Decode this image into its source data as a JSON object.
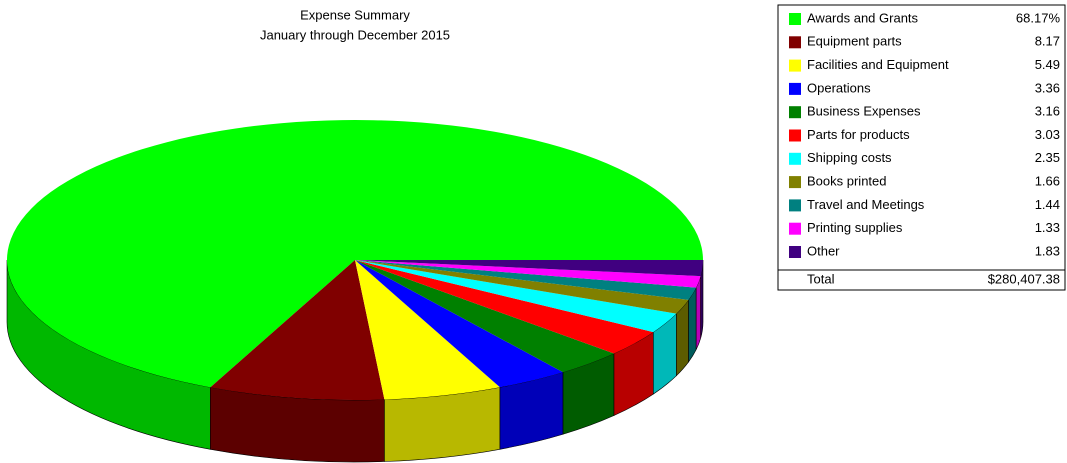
{
  "chart_data": {
    "type": "pie3d",
    "title": "Expense Summary",
    "subtitle": "January through December 2015",
    "categories": [
      "Awards and Grants",
      "Equipment parts",
      "Facilities and Equipment",
      "Operations",
      "Business Expenses",
      "Parts for products",
      "Shipping costs",
      "Books printed",
      "Travel and Meetings",
      "Printing supplies",
      "Other"
    ],
    "values": [
      68.17,
      8.17,
      5.49,
      3.36,
      3.16,
      3.03,
      2.35,
      1.66,
      1.44,
      1.33,
      1.83
    ],
    "value_labels": [
      "68.17%",
      "8.17",
      "5.49",
      "3.36",
      "3.16",
      "3.03",
      "2.35",
      "1.66",
      "1.44",
      "1.33",
      "1.83"
    ],
    "colors": [
      "#00ff00",
      "#800000",
      "#ffff00",
      "#0000ff",
      "#008000",
      "#ff0000",
      "#00ffff",
      "#808000",
      "#008080",
      "#ff00ff",
      "#400080"
    ],
    "total_label": "Total",
    "total_value": "$280,407.38",
    "legend": "top-right"
  }
}
